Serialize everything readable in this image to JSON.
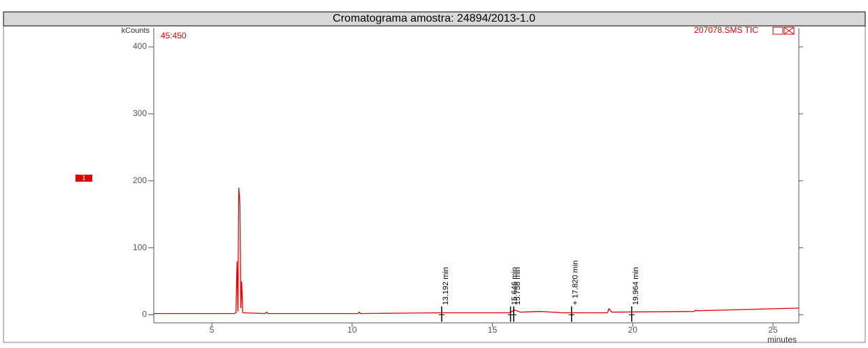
{
  "chart_data": {
    "type": "line",
    "title": "Cromatograma amostra: 24894/2013-1.0",
    "y_axis_label": "kCounts",
    "x_axis_label": "minutes",
    "scan_label": "45:450",
    "trace_label": "207078.SMS TIC",
    "marker_label": "1",
    "x": [
      2.93,
      5.8,
      5.86,
      5.9,
      5.93,
      5.96,
      6.0,
      6.03,
      6.06,
      6.1,
      6.9,
      6.95,
      7.0,
      10.2,
      10.25,
      10.3,
      13.2,
      15.6,
      15.7,
      15.8,
      16.0,
      16.7,
      17.5,
      19.1,
      19.15,
      19.25,
      22.2,
      22.25,
      22.3,
      25.92
    ],
    "series": [
      {
        "name": "207078.SMS TIC",
        "color": "#e00000",
        "values": [
          2,
          2,
          3,
          80,
          5,
          190,
          165,
          10,
          50,
          3,
          2,
          4,
          2,
          2,
          4,
          2,
          3,
          3,
          5,
          7,
          4,
          5,
          3,
          3,
          9,
          4,
          5,
          7,
          6,
          10
        ]
      }
    ],
    "annotations": [
      {
        "x": 13.192,
        "label": "13.192 min"
      },
      {
        "x": 15.646,
        "label": "15.646 min"
      },
      {
        "x": 15.758,
        "label": "15.758 min"
      },
      {
        "x": 17.82,
        "label": "+ 17.820 min"
      },
      {
        "x": 19.964,
        "label": "19.964 min"
      }
    ],
    "xlim": [
      2.93,
      25.92
    ],
    "xticks": [
      5,
      10,
      15,
      20,
      25
    ],
    "ylim": [
      -12,
      423
    ],
    "yticks": [
      0,
      100,
      200,
      300,
      400
    ]
  }
}
